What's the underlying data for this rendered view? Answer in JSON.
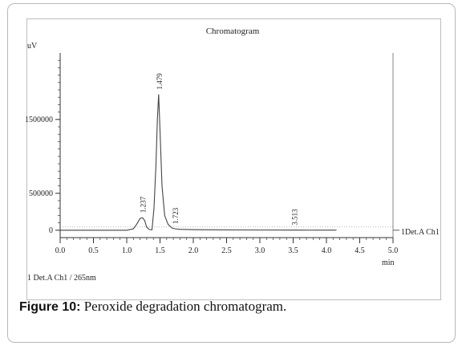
{
  "chart_data": {
    "type": "line",
    "title": "Chromatogram",
    "ylabel": "uV",
    "xlabel": "min",
    "xlim": [
      0.0,
      5.0
    ],
    "ylim": [
      -100000,
      2400000
    ],
    "x_ticks": [
      "0.0",
      "0.5",
      "1.0",
      "1.5",
      "2.0",
      "2.5",
      "3.0",
      "3.5",
      "4.0",
      "4.5",
      "5.0"
    ],
    "y_ticks": [
      "0",
      "500000",
      "1500000"
    ],
    "series": [
      {
        "name": "1Det.A Ch1",
        "x": [
          0.0,
          1.0,
          1.1,
          1.15,
          1.2,
          1.237,
          1.27,
          1.3,
          1.34,
          1.38,
          1.41,
          1.44,
          1.46,
          1.479,
          1.5,
          1.53,
          1.57,
          1.62,
          1.68,
          1.723,
          1.8,
          2.0,
          2.5,
          3.0,
          3.513,
          4.0,
          4.15
        ],
        "y": [
          0,
          0,
          20000,
          80000,
          160000,
          170000,
          130000,
          40000,
          10000,
          5000,
          300000,
          900000,
          1500000,
          1840000,
          1350000,
          600000,
          200000,
          80000,
          30000,
          20000,
          12000,
          8000,
          5000,
          3000,
          2500,
          1500,
          1000
        ]
      }
    ],
    "peak_labels": [
      {
        "x": 1.237,
        "y": 170000,
        "label": "1.237"
      },
      {
        "x": 1.479,
        "y": 1840000,
        "label": "1.479"
      },
      {
        "x": 1.723,
        "y": 20000,
        "label": "1.723"
      },
      {
        "x": 3.513,
        "y": 2500,
        "label": "3.513"
      }
    ],
    "legend_note": "1 Det.A Ch1 / 265nm",
    "channel_label": "1Det.A Ch1",
    "colors": {
      "trace": "#444444",
      "axis": "#333333",
      "baseline": "#777777"
    }
  },
  "caption": {
    "figure_label": "Figure 10:",
    "text": " Peroxide degradation chromatogram."
  }
}
